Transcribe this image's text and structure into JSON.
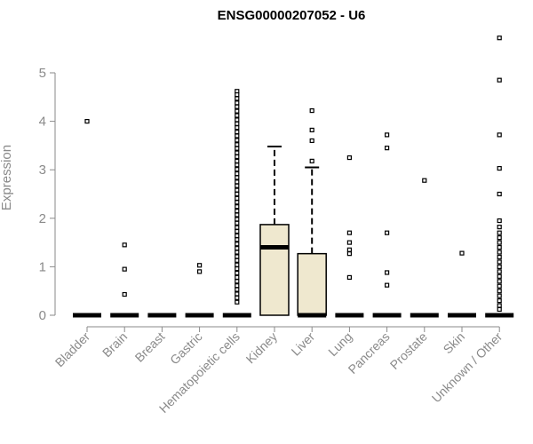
{
  "chart_data": {
    "type": "box",
    "title": "ENSG00000207052 - U6",
    "xlabel": "",
    "ylabel": "Expression",
    "ylim": [
      0,
      5.8
    ],
    "yticks": [
      0,
      1,
      2,
      3,
      4,
      5
    ],
    "grid": false,
    "box_fill": "#efe8cf",
    "categories": [
      "Bladder",
      "Brain",
      "Breast",
      "Gastric",
      "Hematopoietic cells",
      "Kidney",
      "Liver",
      "Lung",
      "Pancreas",
      "Prostate",
      "Skin",
      "Unknown / Other"
    ],
    "boxes": [
      {
        "category": "Bladder",
        "q1": 0,
        "median": 0,
        "q3": 0,
        "whisker_low": 0,
        "whisker_high": 0,
        "outliers": [
          4.0
        ]
      },
      {
        "category": "Brain",
        "q1": 0,
        "median": 0,
        "q3": 0,
        "whisker_low": 0,
        "whisker_high": 0,
        "outliers": [
          1.45,
          0.95,
          0.43
        ]
      },
      {
        "category": "Breast",
        "q1": 0,
        "median": 0,
        "q3": 0,
        "whisker_low": 0,
        "whisker_high": 0,
        "outliers": []
      },
      {
        "category": "Gastric",
        "q1": 0,
        "median": 0,
        "q3": 0,
        "whisker_low": 0,
        "whisker_high": 0,
        "outliers": [
          1.03,
          0.9
        ]
      },
      {
        "category": "Hematopoietic cells",
        "q1": 0,
        "median": 0,
        "q3": 0,
        "whisker_low": 0,
        "whisker_high": 0,
        "outliers": [
          4.62,
          4.55,
          4.47,
          4.38,
          4.3,
          4.21,
          4.12,
          4.03,
          3.95,
          3.87,
          3.78,
          3.7,
          3.61,
          3.52,
          3.44,
          3.35,
          3.27,
          3.18,
          3.1,
          3.01,
          2.92,
          2.84,
          2.75,
          2.67,
          2.58,
          2.5,
          2.41,
          2.33,
          2.24,
          2.15,
          2.07,
          1.98,
          1.9,
          1.81,
          1.73,
          1.64,
          1.56,
          1.47,
          1.38,
          1.3,
          1.21,
          1.13,
          1.04,
          0.96,
          0.87,
          0.78,
          0.7,
          0.61,
          0.53,
          0.44,
          0.36,
          0.27
        ]
      },
      {
        "category": "Kidney",
        "q1": 0,
        "median": 1.4,
        "q3": 1.87,
        "whisker_low": 0,
        "whisker_high": 3.48,
        "outliers": []
      },
      {
        "category": "Liver",
        "q1": 0,
        "median": 0,
        "q3": 1.27,
        "whisker_low": 0,
        "whisker_high": 3.05,
        "outliers": [
          4.22,
          3.82,
          3.6,
          3.18
        ]
      },
      {
        "category": "Lung",
        "q1": 0,
        "median": 0,
        "q3": 0,
        "whisker_low": 0,
        "whisker_high": 0,
        "outliers": [
          3.25,
          1.7,
          1.5,
          1.35,
          1.27,
          0.78
        ]
      },
      {
        "category": "Pancreas",
        "q1": 0,
        "median": 0,
        "q3": 0,
        "whisker_low": 0,
        "whisker_high": 0,
        "outliers": [
          3.72,
          3.45,
          1.7,
          0.88,
          0.62
        ]
      },
      {
        "category": "Prostate",
        "q1": 0,
        "median": 0,
        "q3": 0,
        "whisker_low": 0,
        "whisker_high": 0,
        "outliers": [
          2.78
        ]
      },
      {
        "category": "Skin",
        "q1": 0,
        "median": 0,
        "q3": 0,
        "whisker_low": 0,
        "whisker_high": 0,
        "outliers": [
          1.28
        ]
      },
      {
        "category": "Unknown / Other",
        "q1": 0,
        "median": 0,
        "q3": 0,
        "whisker_low": 0,
        "whisker_high": 0,
        "outliers": [
          5.72,
          4.85,
          3.72,
          3.03,
          2.5,
          1.95,
          1.82,
          1.7,
          1.6,
          1.5,
          1.4,
          1.3,
          1.2,
          1.1,
          1.0,
          0.9,
          0.8,
          0.7,
          0.6,
          0.5,
          0.4,
          0.3,
          0.2,
          0.12
        ]
      }
    ]
  }
}
